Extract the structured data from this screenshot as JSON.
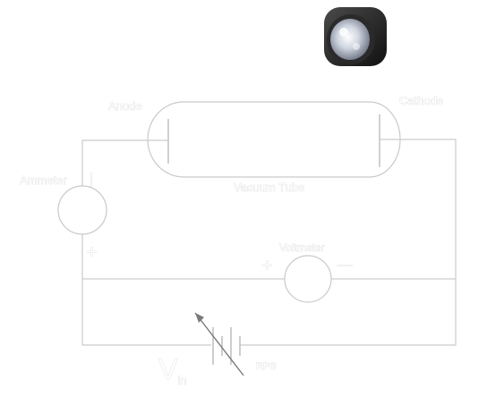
{
  "labels": {
    "anode": "Anode",
    "cathode": "Cathode",
    "vacuum_tube": "Vacuum Tube",
    "ammeter": "Ammeter",
    "voltmeter": "Voltmeter",
    "ammeter_minus": "|",
    "ammeter_plus": "+",
    "voltmeter_plus": "+",
    "voltmeter_minus": "—",
    "vin": "V",
    "vin_sub": "in",
    "rps": "RPS"
  },
  "icons": {
    "light_source": "lamp-icon"
  },
  "colors": {
    "wire": "#cccccc",
    "label_fill": "#ffffff",
    "lamp_body": "#1e1e1e"
  }
}
